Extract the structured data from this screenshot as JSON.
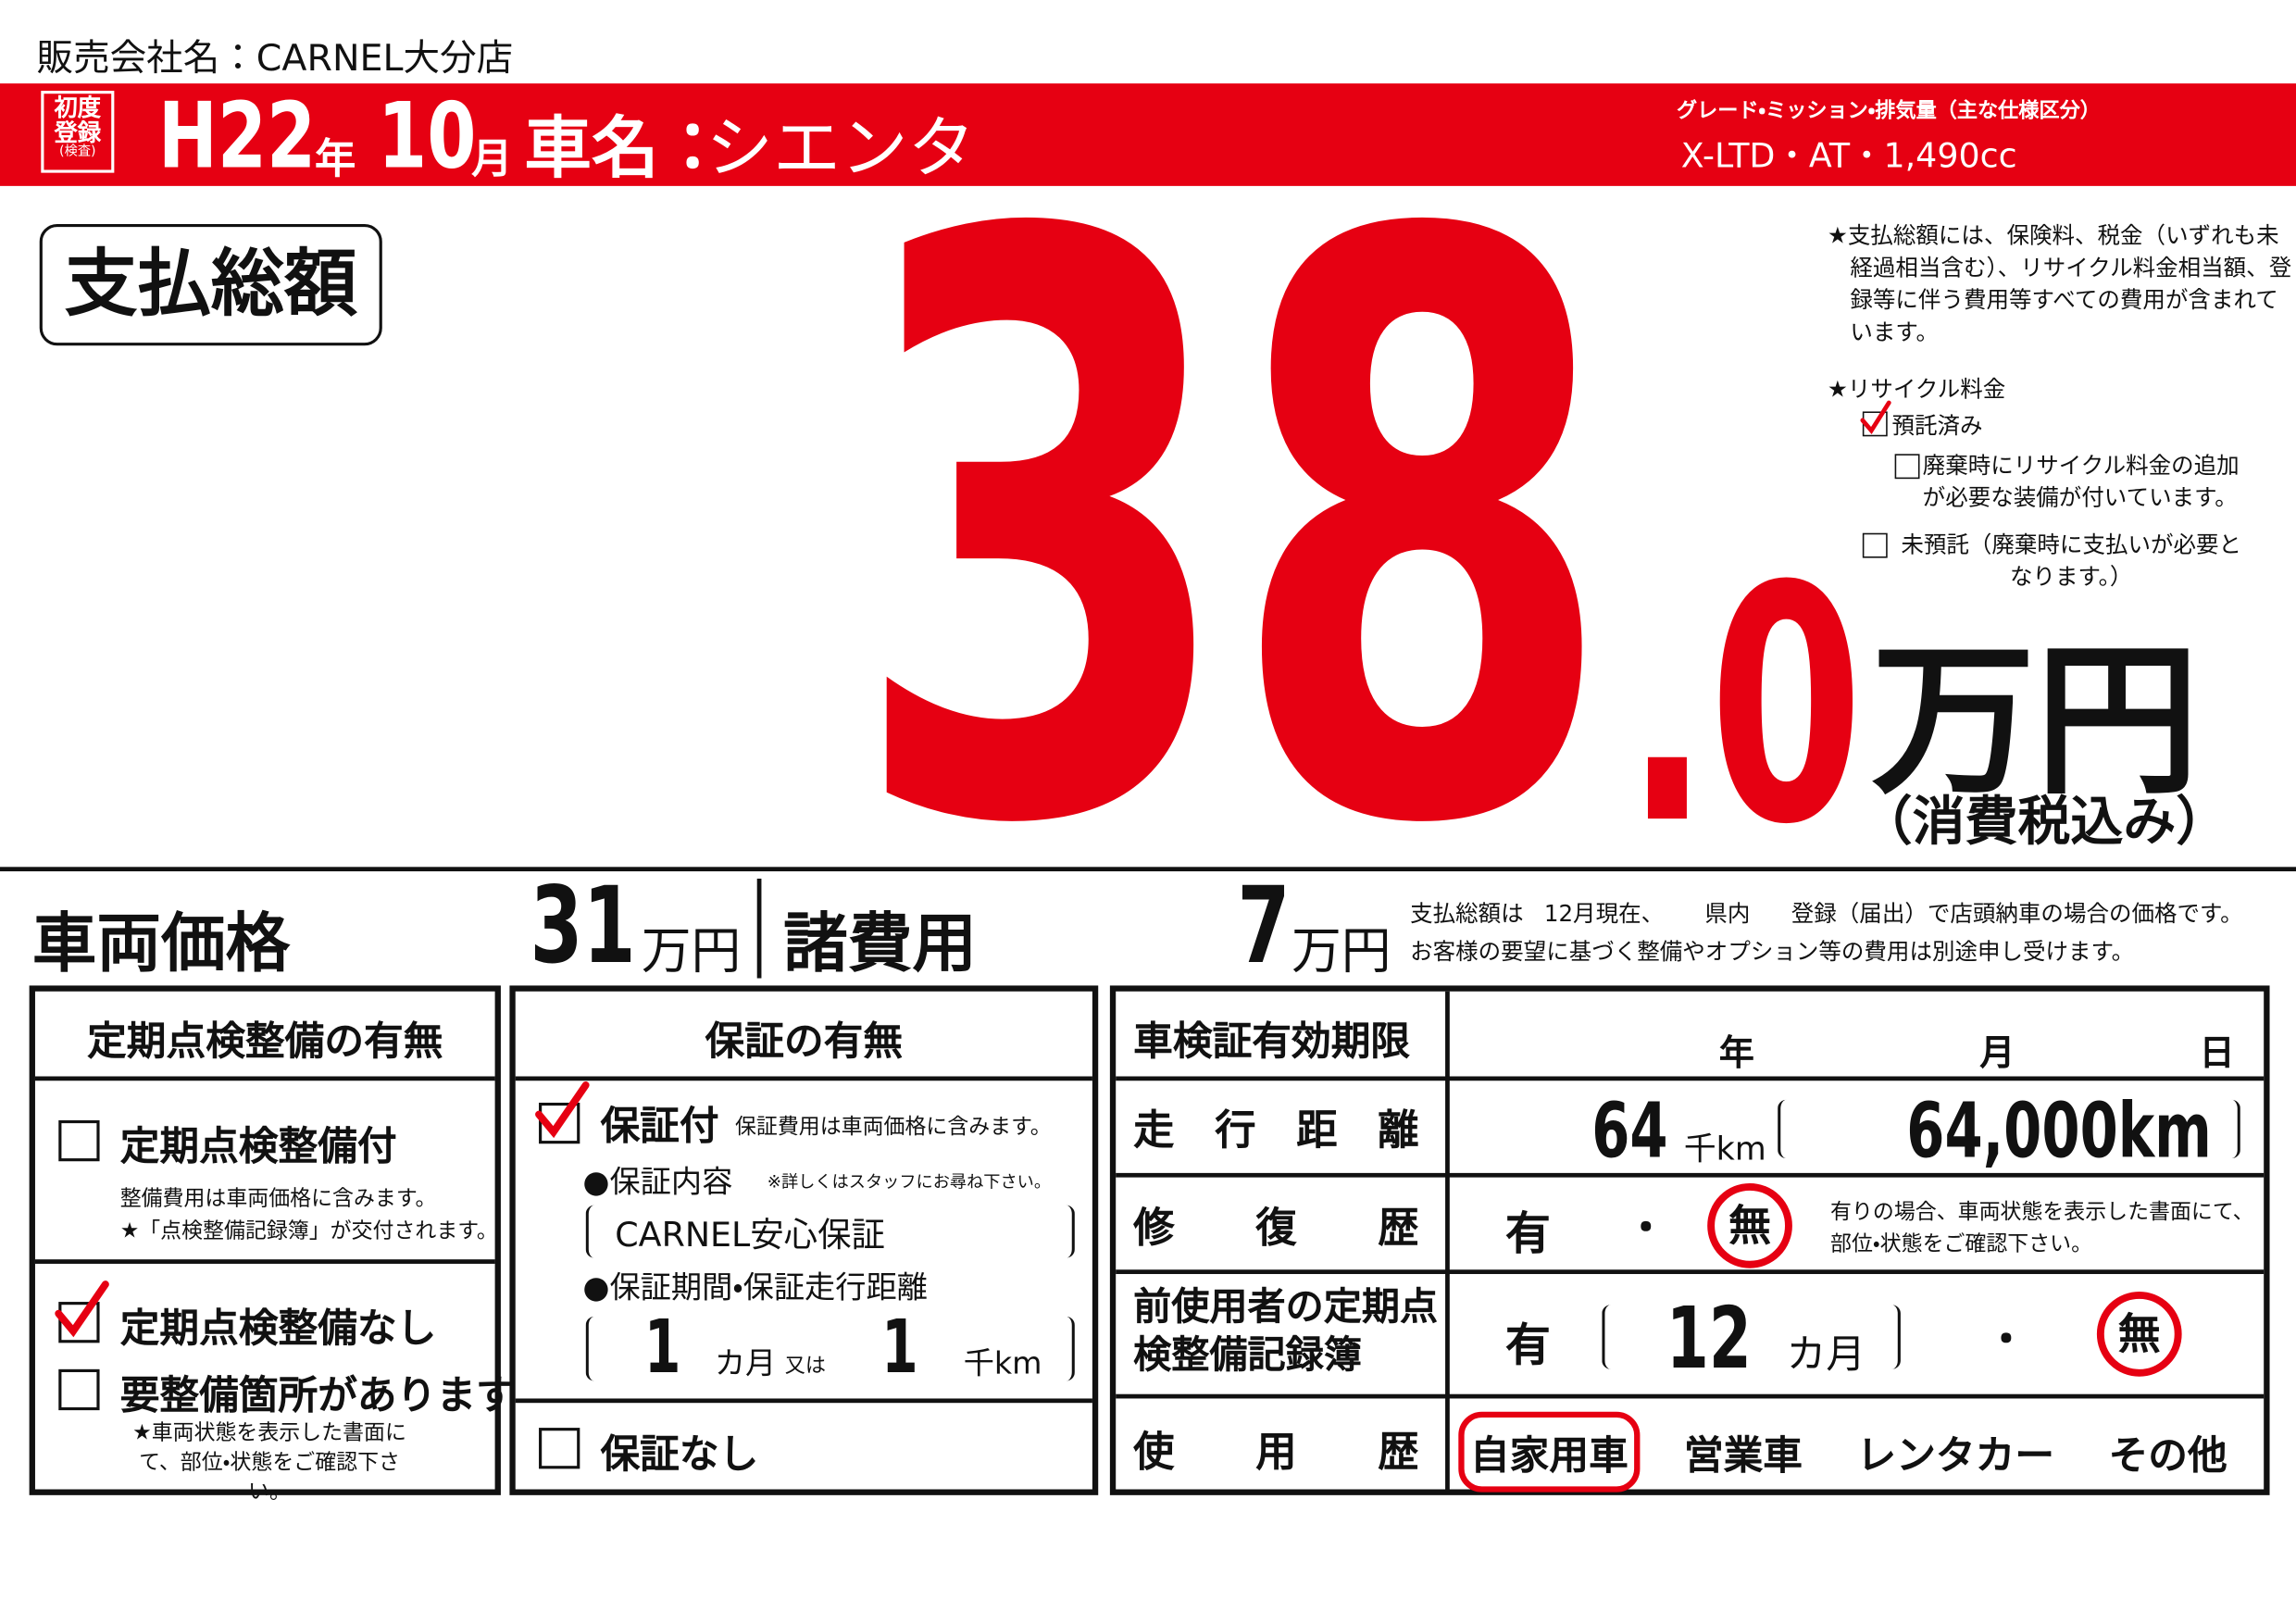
{
  "header": {
    "dealer_label": "販売会社名：",
    "dealer": "CARNEL大分店"
  },
  "banner": {
    "first_reg_label": "初度登録",
    "first_reg_note": "(検査)",
    "era_year": "H22",
    "year_unit": "年",
    "month": "10",
    "month_unit": "月",
    "car_name_label": "車名：",
    "car_name": "シエンタ",
    "spec_label": "グレード・ミッション・排気量（主な仕様区分）",
    "spec": "X-LTD・AT・1,490cc"
  },
  "total": {
    "label": "支払総額",
    "integer": "38",
    "fraction": ".0",
    "unit": "万円",
    "tax_note": "（消費税込み）"
  },
  "notes": {
    "included": "★支払総額には、保険料、税金（いずれも未経過相当含む）、リサイクル料金相当額、登録等に伴う費用等すべての費用が含まれています。",
    "recycle_title": "★リサイクル料金",
    "recycle_options": [
      {
        "label": "預託済み",
        "checked": true
      },
      {
        "label": "廃棄時にリサイクル料金の追加が必要な装備が付いています。",
        "checked": false
      },
      {
        "label": "未預託（廃棄時に支払いが必要となります。）",
        "checked": false
      }
    ]
  },
  "price_row": {
    "vehicle_label": "車両価格",
    "vehicle_price": "31",
    "vehicle_unit": "万円",
    "fees_label": "諸費用",
    "fees": "7",
    "fees_unit": "万円",
    "note_prefix": "支払総額は",
    "note_date": "12月現在、",
    "note_pref": "県内",
    "note_suffix": "登録（届出）で店頭納車の場合の価格です。",
    "note_line2": "お客様の要望に基づく整備やオプション等の費用は別途申し受けます。"
  },
  "inspection": {
    "title": "定期点検整備の有無",
    "with": {
      "label": "定期点検整備付",
      "checked": false
    },
    "with_note1": "整備費用は車両価格に含みます。",
    "with_note2": "★「点検整備記録簿」が交付されます。",
    "without": {
      "label": "定期点検整備なし",
      "checked": true
    },
    "needs": {
      "label": "要整備箇所があります",
      "checked": false
    },
    "needs_note": "★車両状態を表示した書面にて、部位・状態をご確認下さい。"
  },
  "warranty": {
    "title": "保証の有無",
    "with": {
      "label": "保証付",
      "checked": true
    },
    "with_note": "保証費用は車両価格に含みます。",
    "content_label": "●保証内容",
    "content_note": "※詳しくはスタッフにお尋ね下さい。",
    "content": "CARNEL安心保証",
    "period_label": "●保証期間・保証走行距離",
    "months": "1",
    "months_unit": "カ月",
    "or": "又は",
    "distance": "1",
    "distance_unit": "千km",
    "without": {
      "label": "保証なし",
      "checked": false
    }
  },
  "details": {
    "inspection_label": "車検証有効期限",
    "year": "年",
    "month": "月",
    "day": "日",
    "mileage_label": "走行距離",
    "mileage": "64",
    "mileage_unit": "千km",
    "mileage_full": "64,000km",
    "repair_label": "修復歴",
    "repair_options": [
      "有",
      "無"
    ],
    "repair_selected": 1,
    "separator": "・",
    "repair_note": "有りの場合、車両状態を表示した書面にて、部位・状態をご確認下さい。",
    "records_label": "前使用者の定期点検整備記録簿",
    "records_yes": "有",
    "records_months": "12",
    "records_unit": "カ月",
    "records_no": "無",
    "records_selected": "no",
    "usage_label": "使用歴",
    "usage_options": [
      "自家用車",
      "営業車",
      "レンタカー",
      "その他"
    ],
    "usage_selected": 0
  }
}
